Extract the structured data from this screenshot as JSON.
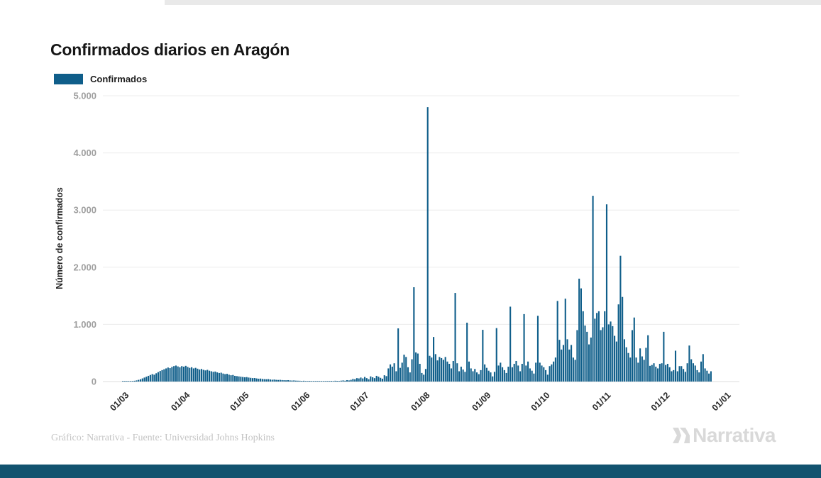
{
  "page": {
    "title": "Confirmados diarios en Aragón",
    "footer_credit": "Gráfico: Narrativa - Fuente: Universidad Johns Hopkins",
    "brand": "Narrativa"
  },
  "legend": {
    "label": "Confirmados",
    "color": "#0f5e8a"
  },
  "chart_data": {
    "type": "bar",
    "title": "Confirmados diarios en Aragón",
    "ylabel": "Número de confirmados",
    "xlabel": "",
    "ylim": [
      0,
      5000
    ],
    "yticks": [
      0,
      1000,
      2000,
      3000,
      4000,
      5000
    ],
    "ytick_labels": [
      "0",
      "1.000",
      "2.000",
      "3.000",
      "4.000",
      "5.000"
    ],
    "legend_entries": [
      "Confirmados"
    ],
    "legend_position": "top-left",
    "grid": true,
    "bar_color": "#0f5e8a",
    "x_start_date": "01/03",
    "x_end_date": "01/01",
    "xtick_labels": [
      "01/03",
      "01/04",
      "01/05",
      "01/06",
      "01/07",
      "01/08",
      "01/09",
      "01/10",
      "01/11",
      "01/12",
      "01/01"
    ],
    "xtick_day_index": [
      0,
      31,
      61,
      92,
      122,
      153,
      184,
      214,
      245,
      275,
      306
    ],
    "series_name": "Confirmados diarios (estimado desde 01/03 hasta 26/12, un valor por día)",
    "values": [
      0,
      1,
      2,
      3,
      5,
      8,
      10,
      14,
      20,
      30,
      40,
      55,
      70,
      85,
      100,
      115,
      130,
      120,
      145,
      165,
      185,
      200,
      215,
      230,
      245,
      235,
      255,
      270,
      280,
      265,
      250,
      270,
      260,
      275,
      255,
      240,
      250,
      230,
      240,
      225,
      210,
      220,
      205,
      195,
      205,
      190,
      180,
      170,
      175,
      160,
      150,
      155,
      140,
      130,
      135,
      120,
      110,
      115,
      100,
      95,
      90,
      85,
      80,
      75,
      78,
      70,
      65,
      60,
      62,
      55,
      50,
      52,
      45,
      42,
      40,
      42,
      36,
      32,
      35,
      30,
      28,
      30,
      26,
      24,
      22,
      25,
      20,
      18,
      20,
      16,
      15,
      14,
      12,
      14,
      10,
      9,
      12,
      8,
      7,
      10,
      8,
      7,
      9,
      8,
      6,
      8,
      10,
      12,
      10,
      14,
      12,
      10,
      16,
      20,
      15,
      25,
      20,
      30,
      45,
      40,
      60,
      55,
      70,
      55,
      80,
      60,
      40,
      90,
      75,
      60,
      100,
      85,
      65,
      50,
      110,
      95,
      230,
      300,
      260,
      320,
      180,
      930,
      240,
      330,
      470,
      430,
      250,
      160,
      390,
      1650,
      510,
      490,
      310,
      150,
      120,
      220,
      4800,
      450,
      420,
      780,
      480,
      370,
      430,
      410,
      380,
      430,
      350,
      310,
      230,
      360,
      1550,
      320,
      180,
      260,
      210,
      170,
      1030,
      350,
      230,
      180,
      220,
      160,
      130,
      200,
      905,
      300,
      240,
      190,
      160,
      90,
      170,
      935,
      280,
      330,
      250,
      200,
      150,
      260,
      1310,
      250,
      310,
      360,
      280,
      180,
      310,
      1180,
      280,
      350,
      230,
      190,
      140,
      330,
      1150,
      330,
      280,
      250,
      200,
      120,
      270,
      300,
      350,
      420,
      1410,
      730,
      560,
      640,
      1450,
      740,
      560,
      640,
      420,
      380,
      900,
      1800,
      1630,
      1230,
      980,
      870,
      650,
      770,
      3250,
      1100,
      1200,
      1230,
      900,
      950,
      1230,
      3100,
      1000,
      1050,
      970,
      800,
      700,
      1350,
      2200,
      1480,
      740,
      600,
      500,
      420,
      900,
      1120,
      420,
      330,
      580,
      440,
      380,
      590,
      810,
      275,
      290,
      320,
      260,
      230,
      310,
      320,
      870,
      290,
      310,
      250,
      180,
      200,
      540,
      180,
      270,
      270,
      220,
      170,
      320,
      630,
      390,
      320,
      280,
      200,
      160,
      350,
      480,
      230,
      190,
      140,
      180
    ]
  }
}
